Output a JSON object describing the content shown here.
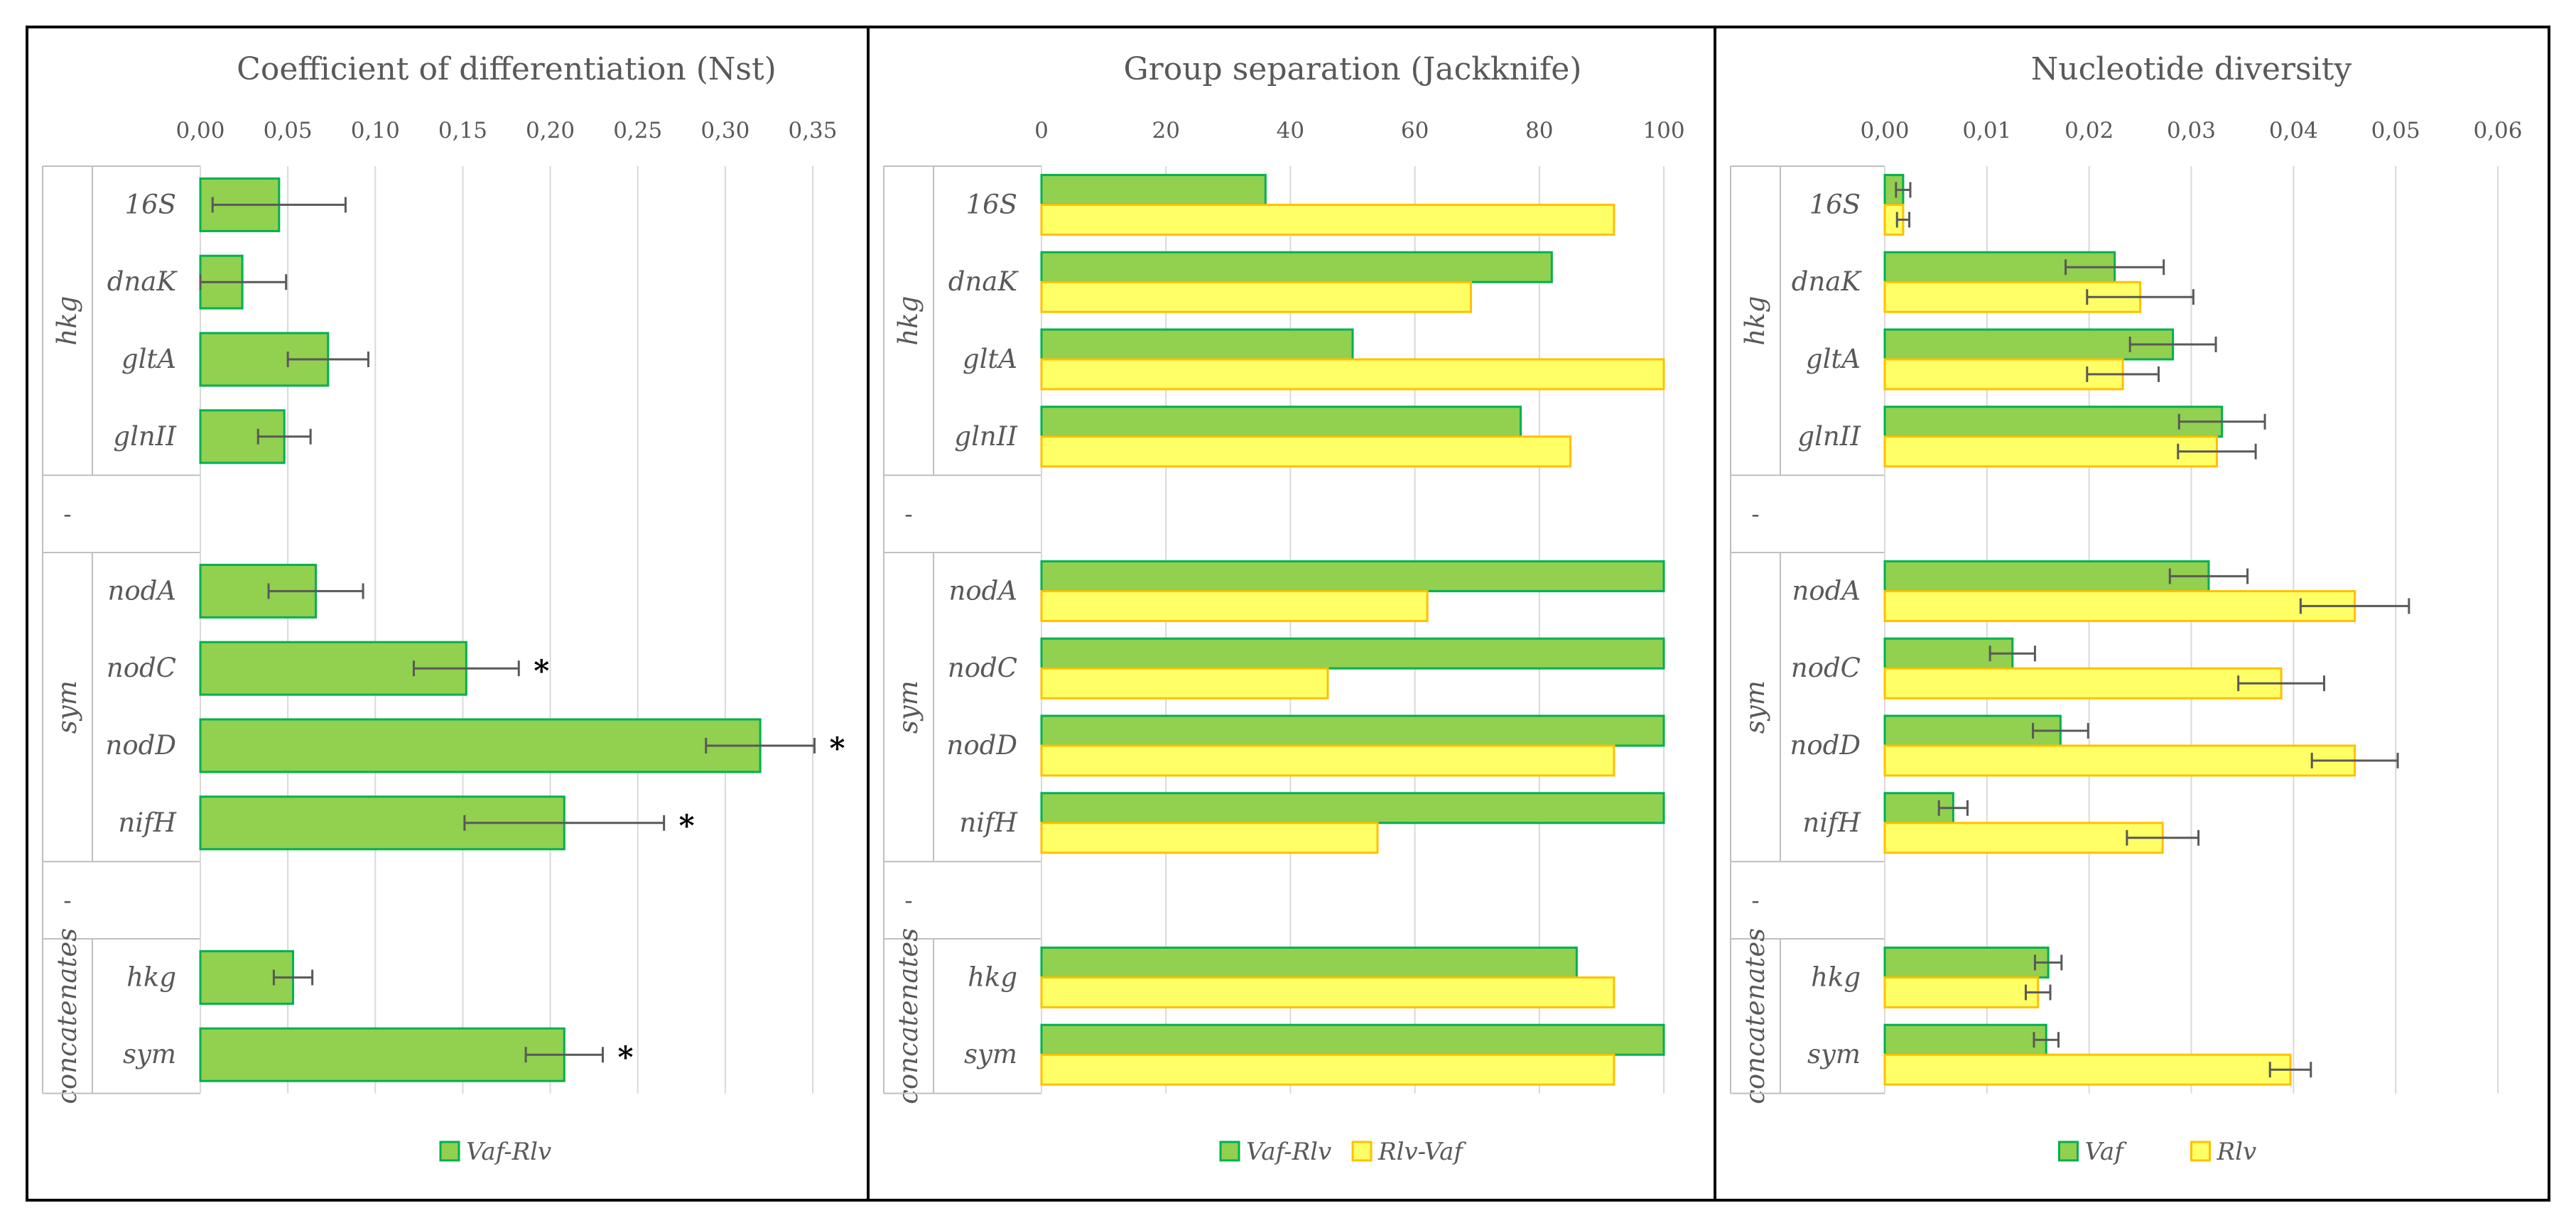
{
  "colors": {
    "green_fill": "#92D050",
    "green_stroke": "#00B050",
    "yellow_fill": "#FFFF66",
    "yellow_stroke": "#FFC000",
    "grid": "#D9D9D9",
    "error_bar": "#595959",
    "frame": "#000000",
    "text": "#595959"
  },
  "chart_data": [
    {
      "type": "bar",
      "orientation": "horizontal",
      "title": "Coefficient of differentiation (Nst)",
      "xlim": [
        0,
        0.35
      ],
      "xticks": [
        0,
        0.05,
        0.1,
        0.15,
        0.2,
        0.25,
        0.3,
        0.35
      ],
      "tick_labels": [
        "0,00",
        "0,05",
        "0,10",
        "0,15",
        "0,20",
        "0,25",
        "0,30",
        "0,35"
      ],
      "groups": [
        {
          "name": "hkg",
          "categories": [
            "16S",
            "dnaK",
            "gltA",
            "glnII"
          ]
        },
        {
          "name": "-",
          "categories": [
            ""
          ]
        },
        {
          "name": "sym",
          "categories": [
            "nodA",
            "nodC",
            "nodD",
            "nifH"
          ]
        },
        {
          "name": "-",
          "categories": [
            ""
          ]
        },
        {
          "name": "concatenates",
          "categories": [
            "hkg",
            "sym"
          ]
        }
      ],
      "series": [
        {
          "name": "Vaf-Rlv",
          "color": "green",
          "values": [
            0.045,
            0.024,
            0.073,
            0.048,
            null,
            0.066,
            0.152,
            0.32,
            0.208,
            null,
            0.053,
            0.208
          ],
          "errors": [
            0.038,
            0.025,
            0.023,
            0.015,
            null,
            0.027,
            0.03,
            0.031,
            0.057,
            null,
            0.011,
            0.022
          ]
        }
      ],
      "significance": [
        "",
        "",
        "",
        "",
        "",
        "",
        "*",
        "*",
        "*",
        "",
        "",
        "*"
      ],
      "legend": [
        "Vaf-Rlv"
      ],
      "legend_position": "bottom"
    },
    {
      "type": "bar",
      "orientation": "horizontal",
      "title": "Group separation (Jackknife)",
      "xlim": [
        0,
        100
      ],
      "xticks": [
        0,
        20,
        40,
        60,
        80,
        100
      ],
      "tick_labels": [
        "0",
        "20",
        "40",
        "60",
        "80",
        "100"
      ],
      "groups": [
        {
          "name": "hkg",
          "categories": [
            "16S",
            "dnaK",
            "gltA",
            "glnII"
          ]
        },
        {
          "name": "-",
          "categories": [
            ""
          ]
        },
        {
          "name": "sym",
          "categories": [
            "nodA",
            "nodC",
            "nodD",
            "nifH"
          ]
        },
        {
          "name": "-",
          "categories": [
            ""
          ]
        },
        {
          "name": "concatenates",
          "categories": [
            "hkg",
            "sym"
          ]
        }
      ],
      "series": [
        {
          "name": "Vaf-Rlv",
          "color": "green",
          "values": [
            36,
            82,
            50,
            77,
            null,
            100,
            100,
            100,
            100,
            null,
            86,
            100
          ]
        },
        {
          "name": "Rlv-Vaf",
          "color": "yellow",
          "values": [
            92,
            69,
            100,
            85,
            null,
            62,
            46,
            92,
            54,
            null,
            92,
            92
          ]
        }
      ],
      "legend": [
        "Vaf-Rlv",
        "Rlv-Vaf"
      ],
      "legend_position": "bottom"
    },
    {
      "type": "bar",
      "orientation": "horizontal",
      "title": "Nucleotide diversity",
      "xlim": [
        0,
        0.06
      ],
      "xticks": [
        0,
        0.01,
        0.02,
        0.03,
        0.04,
        0.05,
        0.06
      ],
      "tick_labels": [
        "0,00",
        "0,01",
        "0,02",
        "0,03",
        "0,04",
        "0,05",
        "0,06"
      ],
      "groups": [
        {
          "name": "hkg",
          "categories": [
            "16S",
            "dnaK",
            "gltA",
            "glnII"
          ]
        },
        {
          "name": "-",
          "categories": [
            ""
          ]
        },
        {
          "name": "sym",
          "categories": [
            "nodA",
            "nodC",
            "nodD",
            "nifH"
          ]
        },
        {
          "name": "-",
          "categories": [
            ""
          ]
        },
        {
          "name": "concatenates",
          "categories": [
            "hkg",
            "sym"
          ]
        }
      ],
      "series": [
        {
          "name": "Vaf",
          "color": "green",
          "values": [
            0.0018,
            0.0225,
            0.0282,
            0.033,
            null,
            0.0317,
            0.0125,
            0.0172,
            0.0067,
            null,
            0.016,
            0.0158
          ],
          "errors": [
            0.0007,
            0.0048,
            0.0042,
            0.0042,
            null,
            0.0038,
            0.0022,
            0.0027,
            0.0014,
            null,
            0.0013,
            0.0012
          ]
        },
        {
          "name": "Rlv",
          "color": "yellow",
          "values": [
            0.0018,
            0.025,
            0.0233,
            0.0325,
            null,
            0.046,
            0.0388,
            0.046,
            0.0272,
            null,
            0.015,
            0.0397
          ],
          "errors": [
            0.0006,
            0.0052,
            0.0035,
            0.0038,
            null,
            0.0053,
            0.0042,
            0.0042,
            0.0035,
            null,
            0.0012,
            0.002
          ]
        }
      ],
      "legend": [
        "Vaf",
        "Rlv"
      ],
      "legend_position": "bottom"
    }
  ]
}
